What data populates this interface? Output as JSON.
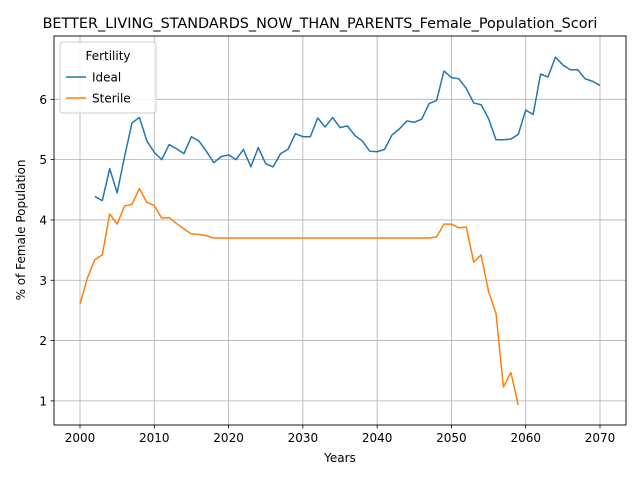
{
  "chart_data": {
    "type": "line",
    "title": "BETTER_LIVING_STANDARDS_NOW_THAN_PARENTS_Female_Population_Scori",
    "xlabel": "Years",
    "ylabel": "% of Female Population",
    "xlim": [
      1996.5,
      2073.5
    ],
    "ylim": [
      0.6,
      7.05
    ],
    "x_ticks": [
      2000,
      2010,
      2020,
      2030,
      2040,
      2050,
      2060,
      2070
    ],
    "y_ticks": [
      1,
      2,
      3,
      4,
      5,
      6
    ],
    "grid": true,
    "legend": {
      "title": "Fertility",
      "placement": "top-left"
    },
    "series": [
      {
        "name": "Ideal",
        "color": "#1f77b4",
        "x": [
          2002,
          2003,
          2004,
          2005,
          2006,
          2007,
          2008,
          2009,
          2010,
          2011,
          2012,
          2013,
          2014,
          2015,
          2016,
          2017,
          2018,
          2019,
          2020,
          2021,
          2022,
          2023,
          2024,
          2025,
          2026,
          2027,
          2028,
          2029,
          2030,
          2031,
          2032,
          2033,
          2034,
          2035,
          2036,
          2037,
          2038,
          2039,
          2040,
          2041,
          2042,
          2043,
          2044,
          2045,
          2046,
          2047,
          2048,
          2049,
          2050,
          2051,
          2052,
          2053,
          2054,
          2055,
          2056,
          2057,
          2058,
          2059,
          2060,
          2061,
          2062,
          2063,
          2064,
          2065,
          2066,
          2067,
          2068,
          2069,
          2070
        ],
        "values": [
          4.39,
          4.32,
          4.85,
          4.45,
          5.05,
          5.61,
          5.7,
          5.31,
          5.12,
          5.0,
          5.25,
          5.18,
          5.1,
          5.38,
          5.31,
          5.14,
          4.95,
          5.05,
          5.08,
          5.0,
          5.17,
          4.88,
          5.2,
          4.93,
          4.88,
          5.1,
          5.17,
          5.43,
          5.38,
          5.38,
          5.69,
          5.54,
          5.7,
          5.53,
          5.56,
          5.4,
          5.31,
          5.14,
          5.13,
          5.17,
          5.41,
          5.51,
          5.64,
          5.62,
          5.67,
          5.93,
          5.98,
          6.47,
          6.36,
          6.34,
          6.18,
          5.94,
          5.91,
          5.68,
          5.33,
          5.33,
          5.34,
          5.42,
          5.82,
          5.75,
          6.42,
          6.37,
          6.7,
          6.57,
          6.49,
          6.49,
          6.34,
          6.3,
          6.23
        ]
      },
      {
        "name": "Sterile",
        "color": "#ff7f0e",
        "x": [
          2000,
          2001,
          2002,
          2003,
          2004,
          2005,
          2006,
          2007,
          2008,
          2009,
          2010,
          2011,
          2012,
          2013,
          2014,
          2015,
          2016,
          2017,
          2018,
          2019,
          2020,
          2021,
          2022,
          2023,
          2024,
          2025,
          2026,
          2027,
          2028,
          2029,
          2030,
          2031,
          2032,
          2033,
          2034,
          2035,
          2036,
          2037,
          2038,
          2039,
          2040,
          2041,
          2042,
          2043,
          2044,
          2045,
          2046,
          2047,
          2048,
          2049,
          2050,
          2051,
          2052,
          2053,
          2054,
          2055,
          2056,
          2057,
          2058,
          2059
        ],
        "values": [
          2.61,
          3.04,
          3.34,
          3.42,
          4.1,
          3.93,
          4.23,
          4.26,
          4.52,
          4.29,
          4.24,
          4.03,
          4.04,
          3.94,
          3.85,
          3.77,
          3.76,
          3.74,
          3.7,
          3.7,
          3.7,
          3.7,
          3.7,
          3.7,
          3.7,
          3.7,
          3.7,
          3.7,
          3.7,
          3.7,
          3.7,
          3.7,
          3.7,
          3.7,
          3.7,
          3.7,
          3.7,
          3.7,
          3.7,
          3.7,
          3.7,
          3.7,
          3.7,
          3.7,
          3.7,
          3.7,
          3.7,
          3.7,
          3.72,
          3.93,
          3.93,
          3.87,
          3.88,
          3.3,
          3.42,
          2.81,
          2.45,
          1.23,
          1.47,
          0.93
        ]
      }
    ]
  }
}
